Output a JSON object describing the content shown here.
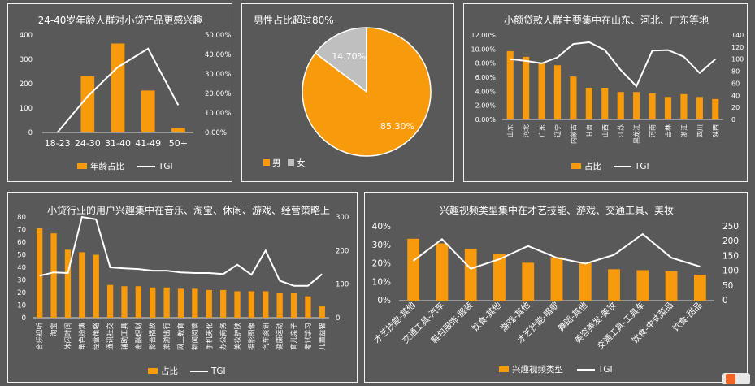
{
  "colors": {
    "bar": "#F79A0B",
    "line": "#FFFFFF",
    "grey": "#BFBFBF",
    "text": "#FFFFFF",
    "axis": "#D9D9D9"
  },
  "chart_data": [
    {
      "type": "bar",
      "title": "24-40岁年龄人群对小贷产品更感兴趣",
      "categories": [
        "18-23",
        "24-30",
        "31-40",
        "41-49",
        "50+"
      ],
      "series": [
        {
          "name": "年龄占比",
          "kind": "bar",
          "axis": "left",
          "values": [
            0,
            230,
            365,
            172,
            18
          ]
        },
        {
          "name": "TGI",
          "kind": "line",
          "axis": "right",
          "values": [
            0,
            18.5,
            33.5,
            43,
            14
          ]
        }
      ],
      "y_left": {
        "ticks": [
          "0",
          "100",
          "200",
          "300",
          "400"
        ],
        "min": 0,
        "max": 400
      },
      "y_right": {
        "ticks": [
          "0.00%",
          "10.00%",
          "20.00%",
          "30.00%",
          "40.00%",
          "50.00%"
        ],
        "min": 0,
        "max": 50
      }
    },
    {
      "type": "pie",
      "title": "男性占比超过80%",
      "slices": [
        {
          "label": "男",
          "value": 85.3,
          "text": "85.30%"
        },
        {
          "label": "女",
          "value": 14.7,
          "text": "14.70%"
        }
      ]
    },
    {
      "type": "bar",
      "title": "小额贷款人群主要集中在山东、河北、广东等地",
      "categories": [
        "山东",
        "河北",
        "广东",
        "辽宁",
        "内蒙古",
        "甘肃",
        "山西",
        "江苏",
        "黑龙江",
        "河南",
        "吉林",
        "浙江",
        "四川",
        "陕西"
      ],
      "series": [
        {
          "name": "占比",
          "kind": "bar",
          "axis": "left",
          "values": [
            9.7,
            8.9,
            8.0,
            7.7,
            6.1,
            4.5,
            4.5,
            3.9,
            3.9,
            3.7,
            3.2,
            3.6,
            3.2,
            2.9
          ]
        },
        {
          "name": "TGI",
          "kind": "line",
          "axis": "right",
          "values": [
            100,
            97,
            93,
            103,
            125,
            128,
            115,
            82,
            55,
            114,
            115,
            104,
            77,
            100
          ]
        }
      ],
      "y_left": {
        "ticks": [
          "0.00%",
          "2.00%",
          "4.00%",
          "6.00%",
          "8.00%",
          "10.00%",
          "12.00%"
        ],
        "min": 0,
        "max": 12
      },
      "y_right": {
        "ticks": [
          "0",
          "20",
          "40",
          "60",
          "80",
          "100",
          "120",
          "140"
        ],
        "min": 0,
        "max": 140
      }
    },
    {
      "type": "bar",
      "title": "小贷行业的用户兴趣集中在音乐、淘宝、休闲、游戏、经营策略上",
      "categories": [
        "音乐视听",
        "淘宝",
        "休闲时间",
        "角色扮演",
        "经营策略",
        "通讯社交",
        "辅助工具",
        "金融理财",
        "影音播放",
        "旅游出行",
        "网上教育",
        "新闻阅读",
        "手机美化",
        "办公商务",
        "美妆护肤",
        "摄影图像",
        "汽车资讯",
        "健康运动",
        "育儿亲子",
        "考试学习",
        "儿童益智"
      ],
      "series": [
        {
          "name": "占比",
          "kind": "bar",
          "axis": "left",
          "values": [
            71,
            67,
            54,
            52,
            50,
            26,
            25,
            25,
            24,
            24,
            23,
            23,
            22,
            22,
            21,
            21,
            21,
            20,
            20,
            17,
            9
          ]
        },
        {
          "name": "TGI",
          "kind": "line",
          "axis": "right",
          "values": [
            125,
            135,
            133,
            300,
            293,
            150,
            147,
            145,
            140,
            140,
            135,
            133,
            133,
            130,
            158,
            128,
            200,
            110,
            95,
            95,
            130
          ]
        }
      ],
      "y_left": {
        "ticks": [
          "0",
          "10",
          "20",
          "30",
          "40",
          "50",
          "60",
          "70",
          "80"
        ],
        "min": 0,
        "max": 80
      },
      "y_right": {
        "ticks": [
          "0",
          "100",
          "200",
          "300"
        ],
        "min": 0,
        "max": 300
      }
    },
    {
      "type": "bar",
      "title": "兴趣视频类型集中在才艺技能、游戏、交通工具、美妆",
      "categories": [
        "才艺技能-其他",
        "交通工具-汽车",
        "鞋包服饰-服装",
        "饮食-其他",
        "游戏-其他",
        "才艺技能-唱歌",
        "舞蹈-其他",
        "美容美发-美妆",
        "交通工具-工具车",
        "饮食-中式菜品",
        "饮食-甜品"
      ],
      "series": [
        {
          "name": "兴趣视频类型",
          "kind": "bar",
          "axis": "left",
          "values": [
            33.5,
            31,
            28,
            25.5,
            20.5,
            23.5,
            20.5,
            17,
            16.5,
            16,
            14
          ]
        },
        {
          "name": "TGI",
          "kind": "line",
          "axis": "right",
          "values": [
            135,
            208,
            108,
            140,
            185,
            145,
            125,
            155,
            225,
            145,
            115
          ]
        }
      ],
      "y_left": {
        "ticks": [
          "0%",
          "10%",
          "20%",
          "30%",
          "40%"
        ],
        "min": 0,
        "max": 40
      },
      "y_right": {
        "ticks": [
          "0",
          "50",
          "100",
          "150",
          "200",
          "250"
        ],
        "min": 0,
        "max": 250
      }
    }
  ]
}
